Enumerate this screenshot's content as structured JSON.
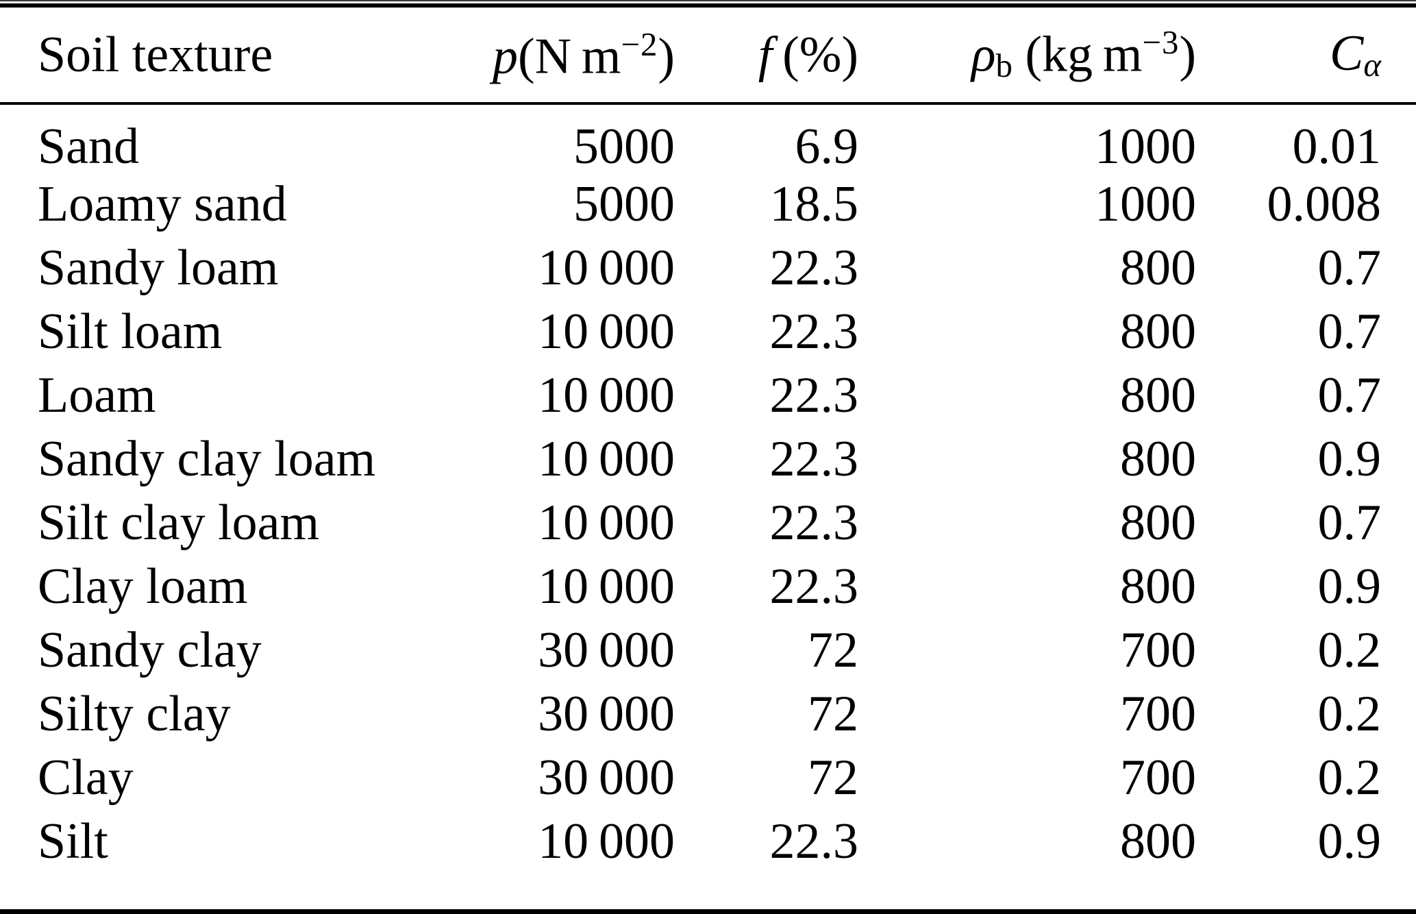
{
  "table": {
    "header": {
      "texture": "Soil texture",
      "p": {
        "var": "p",
        "pre": "(N m",
        "sup": "−2",
        "post": ")"
      },
      "f": {
        "var": "f",
        "pre": " (%)"
      },
      "rho": {
        "var": "ρ",
        "sub": "b",
        "pre": " (kg m",
        "sup": "−3",
        "post": ")"
      },
      "c": {
        "var": "C",
        "sub": "α"
      }
    },
    "rows": [
      {
        "texture": "Sand",
        "p": "5000",
        "f": "6.9",
        "rho": "1000",
        "c": "0.01"
      },
      {
        "texture": "Loamy sand",
        "p": "5000",
        "f": "18.5",
        "rho": "1000",
        "c": "0.008"
      },
      {
        "texture": "Sandy loam",
        "p": "10 000",
        "f": "22.3",
        "rho": "800",
        "c": "0.7"
      },
      {
        "texture": "Silt loam",
        "p": "10 000",
        "f": "22.3",
        "rho": "800",
        "c": "0.7"
      },
      {
        "texture": "Loam",
        "p": "10 000",
        "f": "22.3",
        "rho": "800",
        "c": "0.7"
      },
      {
        "texture": "Sandy clay loam",
        "p": "10 000",
        "f": "22.3",
        "rho": "800",
        "c": "0.9"
      },
      {
        "texture": "Silt clay loam",
        "p": "10 000",
        "f": "22.3",
        "rho": "800",
        "c": "0.7"
      },
      {
        "texture": "Clay loam",
        "p": "10 000",
        "f": "22.3",
        "rho": "800",
        "c": "0.9"
      },
      {
        "texture": "Sandy clay",
        "p": "30 000",
        "f": "72",
        "rho": "700",
        "c": "0.2"
      },
      {
        "texture": "Silty clay",
        "p": "30 000",
        "f": "72",
        "rho": "700",
        "c": "0.2"
      },
      {
        "texture": "Clay",
        "p": "30 000",
        "f": "72",
        "rho": "700",
        "c": "0.2"
      },
      {
        "texture": "Silt",
        "p": "10 000",
        "f": "22.3",
        "rho": "800",
        "c": "0.9"
      }
    ],
    "colors": {
      "text": "#000000",
      "background": "#ffffff",
      "rule": "#000000"
    }
  }
}
